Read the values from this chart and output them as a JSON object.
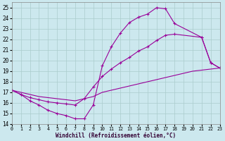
{
  "bg_color": "#cce8ee",
  "grid_color": "#aacccc",
  "line_color": "#990099",
  "xlabel": "Windchill (Refroidissement éolien,°C)",
  "xlim": [
    0,
    23
  ],
  "ylim": [
    14,
    25.5
  ],
  "xtick_vals": [
    0,
    1,
    2,
    3,
    4,
    5,
    6,
    7,
    8,
    9,
    10,
    11,
    12,
    13,
    14,
    15,
    16,
    17,
    18,
    19,
    20,
    21,
    22,
    23
  ],
  "ytick_vals": [
    14,
    15,
    16,
    17,
    18,
    19,
    20,
    21,
    22,
    23,
    24,
    25
  ],
  "curve1_x": [
    0,
    1,
    2,
    3,
    4,
    5,
    6,
    7,
    8,
    9,
    10,
    11,
    12,
    13,
    14,
    15,
    16,
    17,
    18,
    21,
    22,
    23
  ],
  "curve1_y": [
    17.2,
    16.8,
    16.2,
    15.8,
    15.3,
    15.0,
    14.8,
    14.5,
    14.5,
    15.8,
    19.5,
    21.3,
    22.6,
    23.6,
    24.1,
    24.4,
    25.0,
    24.9,
    23.5,
    22.2,
    19.8,
    19.3
  ],
  "curve2_x": [
    0,
    1,
    2,
    3,
    4,
    5,
    6,
    7,
    8,
    9,
    10,
    11,
    12,
    13,
    14,
    15,
    16,
    17,
    18,
    21,
    22,
    23
  ],
  "curve2_y": [
    17.2,
    16.8,
    16.5,
    16.3,
    16.1,
    16.0,
    15.9,
    15.8,
    16.4,
    17.5,
    18.5,
    19.2,
    19.8,
    20.3,
    20.9,
    21.3,
    21.9,
    22.4,
    22.5,
    22.2,
    19.8,
    19.3
  ],
  "curve3_x": [
    0,
    1,
    2,
    3,
    4,
    5,
    6,
    7,
    8,
    9,
    10,
    11,
    12,
    13,
    14,
    15,
    16,
    17,
    18,
    19,
    20,
    21,
    22,
    23
  ],
  "curve3_y": [
    17.2,
    17.0,
    16.8,
    16.6,
    16.5,
    16.4,
    16.3,
    16.2,
    16.4,
    16.6,
    17.0,
    17.2,
    17.4,
    17.6,
    17.8,
    18.0,
    18.2,
    18.4,
    18.6,
    18.8,
    19.0,
    19.1,
    19.2,
    19.3
  ],
  "figsize": [
    3.2,
    2.0
  ],
  "dpi": 100
}
